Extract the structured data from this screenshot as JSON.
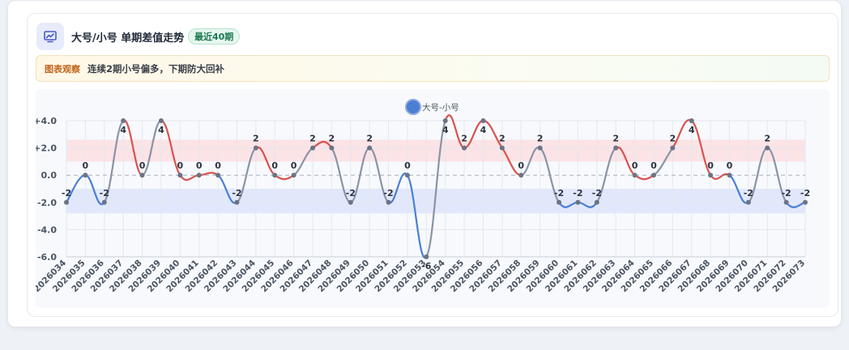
{
  "header": {
    "title": "大号/小号 单期差值走势",
    "badge": "最近40期"
  },
  "note": {
    "tag": "图表观察",
    "text": "连续2期小号偏多，下期防大回补"
  },
  "colors": {
    "positive": "#d9534f",
    "negative": "#4a7fd4",
    "neutral": "#8a94a6",
    "point": "#6b7385",
    "legend_dot": "#4a7fd4"
  },
  "chart_data": {
    "type": "line",
    "title": "",
    "xlabel": "",
    "ylabel": "",
    "ylim": [
      -6,
      4
    ],
    "yticks": [
      4,
      2,
      0,
      -2,
      -4,
      -6
    ],
    "ytick_labels": [
      "+4.0",
      "+2.0",
      "0.0",
      "-2.0",
      "-4.0",
      "-6.0"
    ],
    "legend": "top-center",
    "grid": true,
    "series": [
      {
        "name": "大号-小号",
        "x": [
          "2026034",
          "2026035",
          "2026036",
          "2026037",
          "2026038",
          "2026039",
          "2026040",
          "2026041",
          "2026042",
          "2026043",
          "2026044",
          "2026045",
          "2026046",
          "2026047",
          "2026048",
          "2026049",
          "2026050",
          "2026051",
          "2026052",
          "2026053",
          "2026054",
          "2026055",
          "2026056",
          "2026057",
          "2026058",
          "2026059",
          "2026060",
          "2026061",
          "2026062",
          "2026063",
          "2026064",
          "2026065",
          "2026066",
          "2026067",
          "2026068",
          "2026069",
          "2026070",
          "2026071",
          "2026072",
          "2026073"
        ],
        "values": [
          -2,
          0,
          -2,
          4,
          0,
          4,
          0,
          0,
          0,
          -2,
          2,
          0,
          0,
          2,
          2,
          -2,
          2,
          -2,
          0,
          -6,
          4,
          2,
          4,
          2,
          0,
          2,
          -2,
          -2,
          -2,
          2,
          0,
          0,
          2,
          4,
          0,
          0,
          -2,
          2,
          -2,
          -2
        ]
      }
    ],
    "bands": [
      {
        "from": 1,
        "to": 2.6,
        "color": "#fbe3e6"
      },
      {
        "from": -1,
        "to": -2.8,
        "color": "#e2e8fb"
      }
    ]
  }
}
